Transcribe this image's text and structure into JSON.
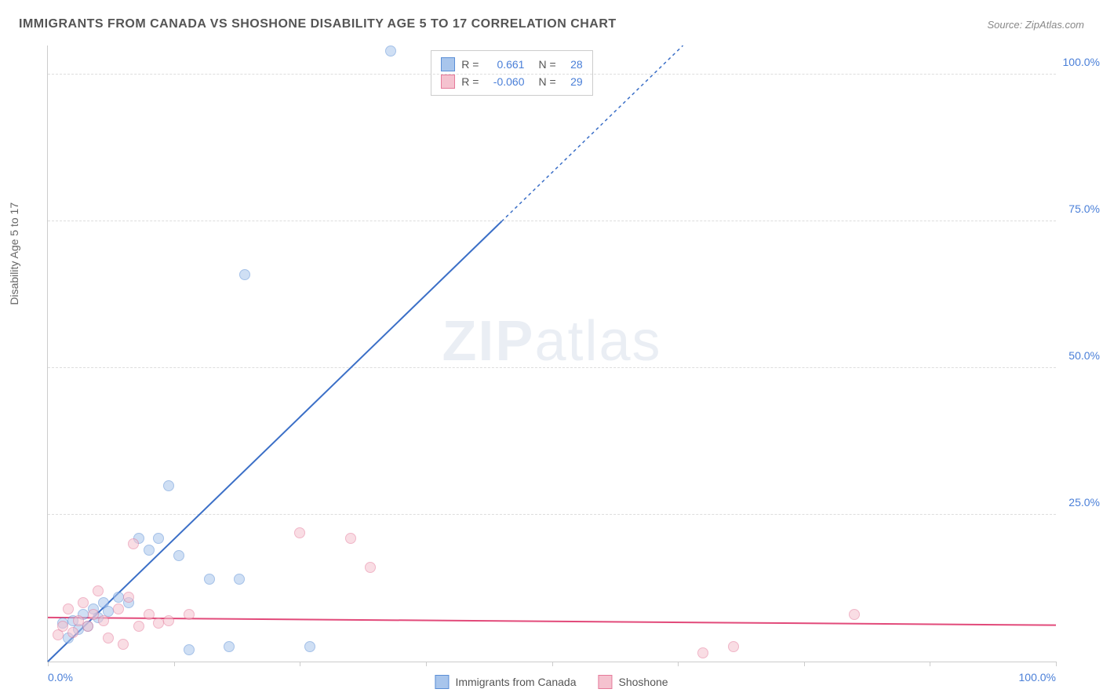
{
  "title": "IMMIGRANTS FROM CANADA VS SHOSHONE DISABILITY AGE 5 TO 17 CORRELATION CHART",
  "source": "Source: ZipAtlas.com",
  "y_axis_label": "Disability Age 5 to 17",
  "watermark_bold": "ZIP",
  "watermark_rest": "atlas",
  "chart": {
    "type": "scatter",
    "xlim": [
      0,
      100
    ],
    "ylim": [
      0,
      105
    ],
    "x_ticks": [
      0,
      12.5,
      25,
      37.5,
      50,
      62.5,
      75,
      87.5,
      100
    ],
    "x_tick_labels": {
      "0": "0.0%",
      "100": "100.0%"
    },
    "y_gridlines": [
      25,
      50,
      75,
      100
    ],
    "y_tick_labels": {
      "25": "25.0%",
      "50": "50.0%",
      "75": "75.0%",
      "100": "100.0%"
    },
    "background_color": "#ffffff",
    "grid_color": "#dddddd",
    "axis_color": "#cccccc",
    "point_radius": 7,
    "point_opacity": 0.55,
    "series": [
      {
        "name": "Immigrants from Canada",
        "color_fill": "#a8c5ec",
        "color_stroke": "#5b8fd6",
        "R": "0.661",
        "N": "28",
        "trend": {
          "x1": 0,
          "y1": 0,
          "x2": 45,
          "y2": 75,
          "dash_from_x": 45,
          "dash_to_x": 63,
          "dash_to_y": 105,
          "color": "#3b6fc7",
          "width": 2
        },
        "points": [
          [
            1.5,
            6.5
          ],
          [
            2,
            4
          ],
          [
            2.5,
            7
          ],
          [
            3,
            5.5
          ],
          [
            3.5,
            8
          ],
          [
            4,
            6
          ],
          [
            4.5,
            9
          ],
          [
            5,
            7.5
          ],
          [
            5.5,
            10
          ],
          [
            6,
            8.5
          ],
          [
            7,
            11
          ],
          [
            8,
            10
          ],
          [
            9,
            21
          ],
          [
            10,
            19
          ],
          [
            11,
            21
          ],
          [
            12,
            30
          ],
          [
            13,
            18
          ],
          [
            14,
            2
          ],
          [
            16,
            14
          ],
          [
            18,
            2.5
          ],
          [
            19,
            14
          ],
          [
            19.5,
            66
          ],
          [
            26,
            2.5
          ],
          [
            34,
            104
          ]
        ]
      },
      {
        "name": "Shoshone",
        "color_fill": "#f5c2cf",
        "color_stroke": "#e57a9a",
        "R": "-0.060",
        "N": "29",
        "trend": {
          "x1": 0,
          "y1": 7.5,
          "x2": 100,
          "y2": 6.2,
          "color": "#e24a7a",
          "width": 2
        },
        "points": [
          [
            1,
            4.5
          ],
          [
            1.5,
            6
          ],
          [
            2,
            9
          ],
          [
            2.5,
            5
          ],
          [
            3,
            7
          ],
          [
            3.5,
            10
          ],
          [
            4,
            6
          ],
          [
            4.5,
            8
          ],
          [
            5,
            12
          ],
          [
            5.5,
            7
          ],
          [
            6,
            4
          ],
          [
            7,
            9
          ],
          [
            7.5,
            3
          ],
          [
            8,
            11
          ],
          [
            8.5,
            20
          ],
          [
            9,
            6
          ],
          [
            10,
            8
          ],
          [
            11,
            6.5
          ],
          [
            12,
            7
          ],
          [
            14,
            8
          ],
          [
            25,
            22
          ],
          [
            30,
            21
          ],
          [
            32,
            16
          ],
          [
            65,
            1.5
          ],
          [
            68,
            2.5
          ],
          [
            80,
            8
          ]
        ]
      }
    ]
  },
  "stats_label_R": "R =",
  "stats_label_N": "N ="
}
